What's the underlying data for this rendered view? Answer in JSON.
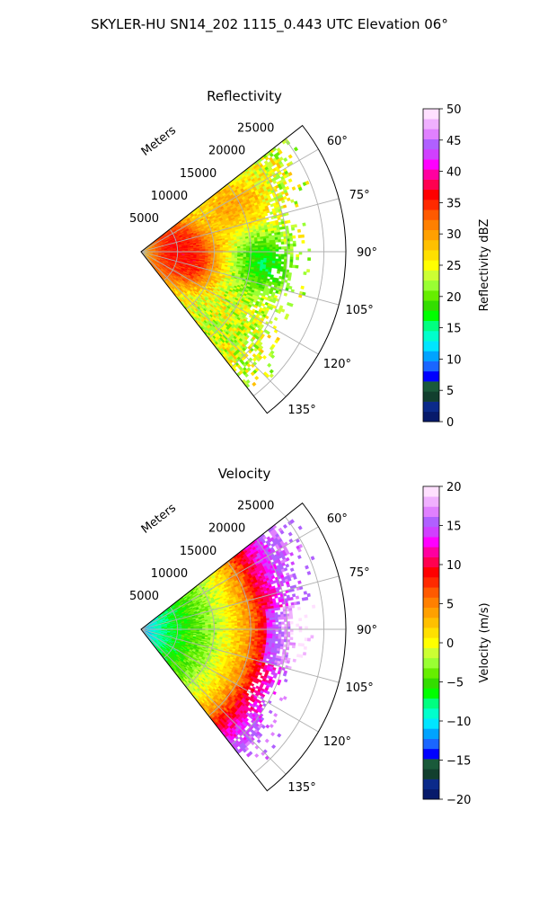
{
  "figure": {
    "suptitle": "SKYLER-HU  SN14_202  1115_0.443 UTC Elevation 06°"
  },
  "chart_data": [
    {
      "type": "polar-sector",
      "title": "Reflectivity",
      "radial_axis_label": "Meters",
      "radial_ticks": [
        "5000",
        "10000",
        "15000",
        "20000",
        "25000"
      ],
      "radial_range": [
        0,
        28000
      ],
      "angular_range_deg": [
        52,
        142
      ],
      "angular_ticks": [
        "60°",
        "75°",
        "90°",
        "105°",
        "120°",
        "135°"
      ],
      "grid": true,
      "colorbar": {
        "label": "Reflectivity dBZ",
        "range": [
          0,
          50
        ],
        "ticks": [
          "0",
          "5",
          "10",
          "15",
          "20",
          "25",
          "30",
          "35",
          "40",
          "45",
          "50"
        ],
        "colors": [
          "#071a6b",
          "#0b2a8a",
          "#123f2e",
          "#1a5a3a",
          "#0000ff",
          "#1a66ff",
          "#00a3ff",
          "#00e5ff",
          "#00ffcc",
          "#00ff80",
          "#00ff00",
          "#33dd00",
          "#66ee00",
          "#99ff33",
          "#ccff33",
          "#ffff00",
          "#ffe000",
          "#ffc000",
          "#ffa000",
          "#ff8000",
          "#ff5a00",
          "#ff2a00",
          "#ff0000",
          "#ff0050",
          "#ff00a0",
          "#ff00ff",
          "#d040ff",
          "#b060ff",
          "#e080ff",
          "#f0b0ff",
          "#ffe0ff"
        ]
      },
      "field": {
        "description": "mostly 18–28 dBZ with 30–38 dBZ cores near range 3000–9000 m at 80–100°",
        "base_value": 24,
        "cores": [
          {
            "azimuth_deg": 80,
            "range_m": 5000,
            "value": 36
          },
          {
            "azimuth_deg": 100,
            "range_m": 7000,
            "value": 36
          },
          {
            "azimuth_deg": 65,
            "range_m": 14000,
            "value": 30
          },
          {
            "azimuth_deg": 95,
            "range_m": 17000,
            "value": 17
          }
        ],
        "max_range_edge_m": [
          {
            "azimuth_deg": 59,
            "range_m": 23000
          },
          {
            "azimuth_deg": 75,
            "range_m": 20000
          },
          {
            "azimuth_deg": 90,
            "range_m": 21000
          },
          {
            "azimuth_deg": 105,
            "range_m": 20000
          },
          {
            "azimuth_deg": 120,
            "range_m": 19000
          },
          {
            "azimuth_deg": 132,
            "range_m": 22000
          }
        ]
      }
    },
    {
      "type": "polar-sector",
      "title": "Velocity",
      "radial_axis_label": "Meters",
      "radial_ticks": [
        "5000",
        "10000",
        "15000",
        "20000",
        "25000"
      ],
      "radial_range": [
        0,
        28000
      ],
      "angular_range_deg": [
        52,
        142
      ],
      "angular_ticks": [
        "60°",
        "75°",
        "90°",
        "105°",
        "120°",
        "135°"
      ],
      "grid": true,
      "colorbar": {
        "label": "Velocity (m/s)",
        "range": [
          -20,
          20
        ],
        "ticks": [
          "−20",
          "−15",
          "−10",
          "−5",
          "0",
          "5",
          "10",
          "15",
          "20"
        ],
        "colors": [
          "#071a6b",
          "#0b2a8a",
          "#123f2e",
          "#1a5a3a",
          "#0000ff",
          "#1a66ff",
          "#00a3ff",
          "#00e5ff",
          "#00ffcc",
          "#00ff80",
          "#00ff00",
          "#33dd00",
          "#66ee00",
          "#99ff33",
          "#ccff33",
          "#ffff00",
          "#ffe000",
          "#ffc000",
          "#ffa000",
          "#ff8000",
          "#ff5a00",
          "#ff2a00",
          "#ff0000",
          "#ff0050",
          "#ff00a0",
          "#ff00ff",
          "#d040ff",
          "#b060ff",
          "#e080ff",
          "#f0b0ff",
          "#ffe0ff"
        ]
      },
      "field": {
        "description": "velocity increases with range: about −12 m/s near radar, ~0 at 12000 m, ~10 m/s at 17000 m, ~15 m/s beyond 20000 m",
        "profile": [
          {
            "range_m": 0,
            "value": -12
          },
          {
            "range_m": 3000,
            "value": -8
          },
          {
            "range_m": 8000,
            "value": -4
          },
          {
            "range_m": 12000,
            "value": 0
          },
          {
            "range_m": 15000,
            "value": 5
          },
          {
            "range_m": 17000,
            "value": 10
          },
          {
            "range_m": 19000,
            "value": 13
          },
          {
            "range_m": 22000,
            "value": 16
          }
        ],
        "max_range_edge_m": [
          {
            "azimuth_deg": 59,
            "range_m": 23000
          },
          {
            "azimuth_deg": 75,
            "range_m": 21000
          },
          {
            "azimuth_deg": 90,
            "range_m": 21000
          },
          {
            "azimuth_deg": 105,
            "range_m": 20000
          },
          {
            "azimuth_deg": 120,
            "range_m": 19000
          },
          {
            "azimuth_deg": 132,
            "range_m": 22000
          }
        ]
      }
    }
  ]
}
